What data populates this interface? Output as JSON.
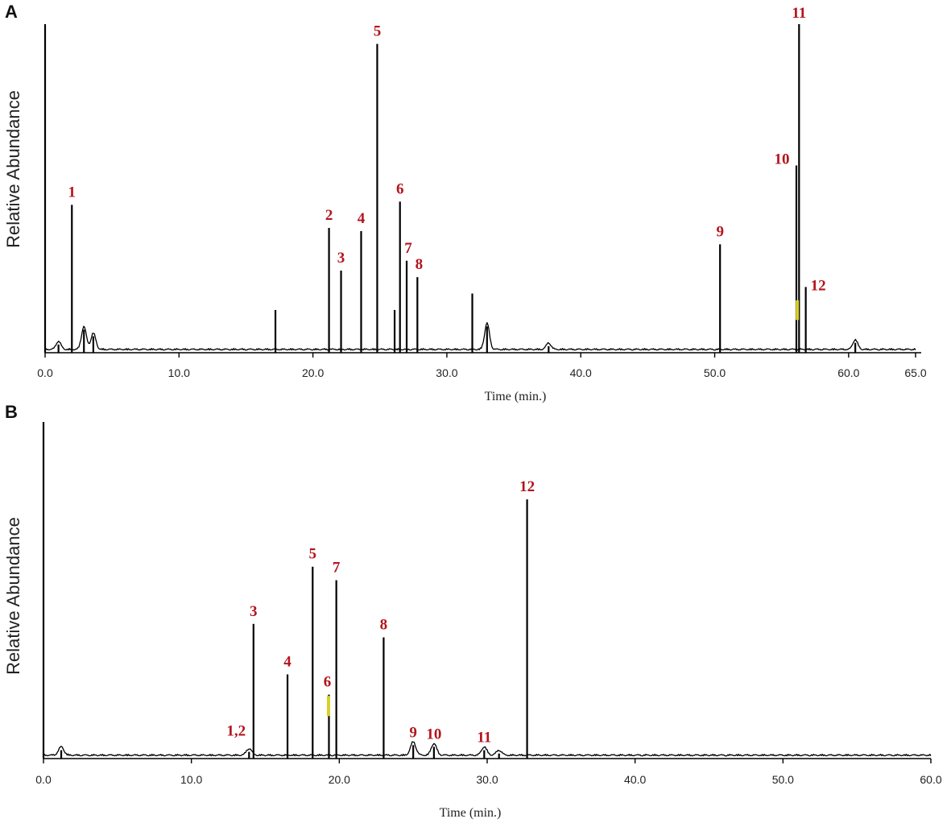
{
  "colors": {
    "trace": "#000000",
    "peak_label": "#b3141c",
    "highlight": "#d8cf2a"
  },
  "chart_data": [
    {
      "panel": "A",
      "type": "line",
      "xlabel": "Time (min.)",
      "ylabel": "Relative Abundance",
      "xlim": [
        0,
        65
      ],
      "ylim": [
        0,
        100
      ],
      "x_ticks": [
        "0.0",
        "10.0",
        "20.0",
        "30.0",
        "40.0",
        "50.0",
        "60.0",
        "65.0"
      ],
      "x_tick_values": [
        0,
        10,
        20,
        30,
        40,
        50,
        60,
        65
      ],
      "grid": false,
      "peaks": [
        {
          "label": "1",
          "x": 2.0,
          "y": 45
        },
        {
          "label": "2",
          "x": 21.2,
          "y": 38
        },
        {
          "label": "3",
          "x": 22.1,
          "y": 25
        },
        {
          "label": "4",
          "x": 23.6,
          "y": 37
        },
        {
          "label": "5",
          "x": 24.8,
          "y": 94
        },
        {
          "label": "6",
          "x": 26.5,
          "y": 46
        },
        {
          "label": "7",
          "x": 27.0,
          "y": 28
        },
        {
          "label": "8",
          "x": 27.8,
          "y": 23
        },
        {
          "label": "9",
          "x": 50.4,
          "y": 33
        },
        {
          "label": "10",
          "x": 56.1,
          "y": 57
        },
        {
          "label": "11",
          "x": 56.3,
          "y": 100
        },
        {
          "label": "12",
          "x": 56.8,
          "y": 20
        }
      ],
      "minor_peaks": [
        {
          "x": 0.0,
          "y": 100
        },
        {
          "x": 1.0,
          "y": 2.5
        },
        {
          "x": 2.9,
          "y": 7
        },
        {
          "x": 3.6,
          "y": 5
        },
        {
          "x": 17.2,
          "y": 13
        },
        {
          "x": 26.1,
          "y": 13
        },
        {
          "x": 31.9,
          "y": 18
        },
        {
          "x": 33.0,
          "y": 8
        },
        {
          "x": 37.6,
          "y": 2
        },
        {
          "x": 60.5,
          "y": 3
        }
      ]
    },
    {
      "panel": "B",
      "type": "line",
      "xlabel": "Time (min.)",
      "ylabel": "Relative Abundance",
      "xlim": [
        0,
        60
      ],
      "ylim": [
        0,
        100
      ],
      "x_ticks": [
        "0.0",
        "10.0",
        "20.0",
        "30.0",
        "40.0",
        "50.0",
        "60.0"
      ],
      "x_tick_values": [
        0,
        10,
        20,
        30,
        40,
        50,
        60
      ],
      "grid": false,
      "peaks": [
        {
          "label": "1,2",
          "x": 13.9,
          "y": 2
        },
        {
          "label": "3",
          "x": 14.2,
          "y": 40
        },
        {
          "label": "4",
          "x": 16.5,
          "y": 25
        },
        {
          "label": "5",
          "x": 18.2,
          "y": 57
        },
        {
          "label": "6",
          "x": 19.3,
          "y": 19
        },
        {
          "label": "7",
          "x": 19.8,
          "y": 53
        },
        {
          "label": "8",
          "x": 23.0,
          "y": 36
        },
        {
          "label": "9",
          "x": 25.0,
          "y": 4
        },
        {
          "label": "10",
          "x": 26.4,
          "y": 3.5
        },
        {
          "label": "11",
          "x": 29.8,
          "y": 2.5
        },
        {
          "label": "12",
          "x": 32.7,
          "y": 77
        }
      ],
      "minor_peaks": [
        {
          "x": 0.0,
          "y": 100
        },
        {
          "x": 1.2,
          "y": 2.5
        },
        {
          "x": 30.8,
          "y": 1.5
        }
      ]
    }
  ]
}
